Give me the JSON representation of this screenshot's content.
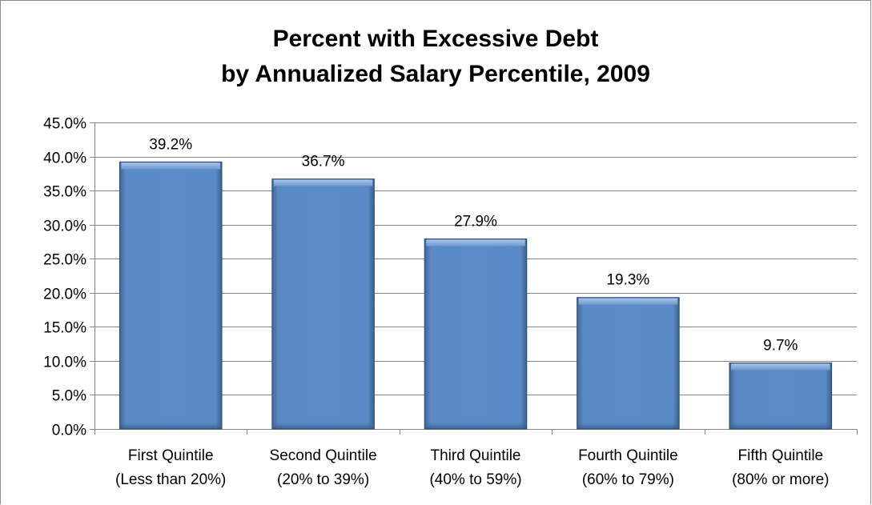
{
  "chart_data": {
    "type": "bar",
    "title": "Percent with Excessive Debt",
    "subtitle": "by Annualized Salary Percentile, 2009",
    "categories": [
      [
        "First Quintile",
        "(Less than 20%)"
      ],
      [
        "Second Quintile",
        "(20% to 39%)"
      ],
      [
        "Third Quintile",
        "(40% to 59%)"
      ],
      [
        "Fourth Quintile",
        "(60% to 79%)"
      ],
      [
        "Fifth Quintile",
        "(80% or more)"
      ]
    ],
    "values": [
      39.2,
      36.7,
      27.9,
      19.3,
      9.7
    ],
    "data_labels": [
      "39.2%",
      "36.7%",
      "27.9%",
      "19.3%",
      "9.7%"
    ],
    "ylim": [
      0,
      45
    ],
    "yticks": [
      0,
      5,
      10,
      15,
      20,
      25,
      30,
      35,
      40,
      45
    ],
    "ytick_labels": [
      "0.0%",
      "5.0%",
      "10.0%",
      "15.0%",
      "20.0%",
      "25.0%",
      "30.0%",
      "35.0%",
      "40.0%",
      "45.0%"
    ],
    "xlabel": "",
    "ylabel": "",
    "grid": true,
    "legend": "none",
    "bar_color": "#4f81bd"
  }
}
